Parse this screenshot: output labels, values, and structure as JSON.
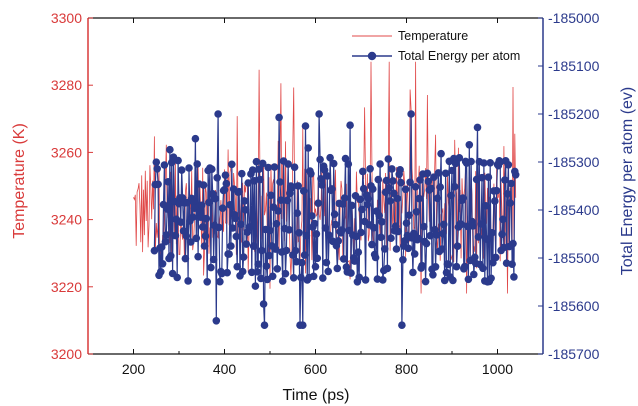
{
  "chart_data": {
    "type": "line",
    "xlabel": "Time (ps)",
    "ylabel_left": "Temperature (K)",
    "ylabel_right": "Total Energy per atom (ev)",
    "xlim": [
      100,
      1100
    ],
    "ylim_left": [
      3200,
      3300
    ],
    "ylim_right": [
      -185700,
      -185000
    ],
    "x_ticks": [
      200,
      400,
      600,
      800,
      1000
    ],
    "y_ticks_left": [
      3200,
      3220,
      3240,
      3260,
      3280,
      3300
    ],
    "y_ticks_right": [
      -185000,
      -185100,
      -185200,
      -185300,
      -185400,
      -185500,
      -185600,
      -185700
    ],
    "legend_position": "top-right",
    "colors": {
      "temperature": "#e04848",
      "energy": "#2b3a8c",
      "left_axis": "#d93a3a",
      "right_axis": "#2b3a8c"
    },
    "series": [
      {
        "name": "Temperature",
        "axis": "left",
        "style": "line",
        "x_range": [
          200,
          1040
        ],
        "step": 2,
        "mean": 3242,
        "approx_min": 3218,
        "approx_max": 3287,
        "values": []
      },
      {
        "name": "Total Energy per atom",
        "axis": "right",
        "style": "line-marker",
        "x_range": [
          246,
          1040
        ],
        "step": 2,
        "mean": -185420,
        "approx_min": -185640,
        "approx_max": -185200,
        "values": []
      }
    ]
  }
}
